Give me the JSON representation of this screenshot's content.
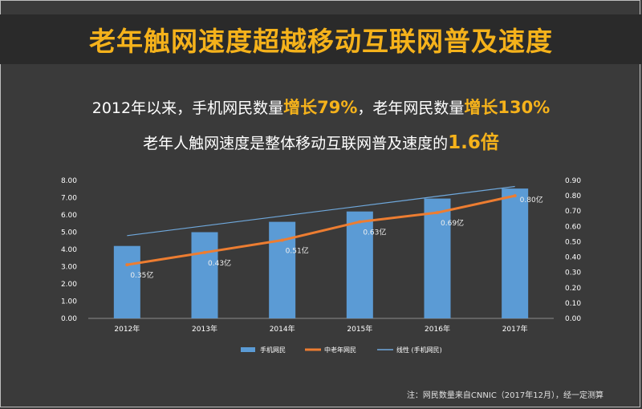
{
  "header": {
    "title": "老年触网速度超越移动互联网普及速度"
  },
  "subtitle": {
    "line1_a": "2012年以来，手机网民数量",
    "line1_hl1": "增长79%",
    "line1_b": "，老年网民数量",
    "line1_hl2": "增长130%",
    "line2_a": "老年人触网速度是整体移动互联网普及速度的",
    "line2_hl": "1.6倍"
  },
  "note": "注：网民数量来自CNNIC（2017年12月），经一定测算",
  "colors": {
    "bar": "#5b9bd5",
    "line_elder": "#ed7d31",
    "trend": "#6fa8dc",
    "axis_text": "#ffffff",
    "title": "#f5b21b"
  },
  "chart_data": {
    "type": "bar",
    "categories": [
      "2012年",
      "2013年",
      "2014年",
      "2015年",
      "2016年",
      "2017年"
    ],
    "series": [
      {
        "name": "手机网民",
        "type": "bar",
        "axis": "left",
        "values": [
          4.2,
          5.0,
          5.6,
          6.2,
          6.95,
          7.53
        ]
      },
      {
        "name": "中老年网民",
        "type": "line",
        "axis": "right",
        "values": [
          0.35,
          0.43,
          0.51,
          0.63,
          0.69,
          0.8
        ]
      },
      {
        "name": "线性 (手机网民)",
        "type": "line",
        "axis": "left",
        "values": [
          4.8,
          5.37,
          5.94,
          6.51,
          7.08,
          7.65
        ]
      }
    ],
    "data_labels": [
      "0.35亿",
      "0.43亿",
      "0.51亿",
      "0.63亿",
      "0.69亿",
      "0.80亿"
    ],
    "y_left_ticks": [
      "0.00",
      "1.00",
      "2.00",
      "3.00",
      "4.00",
      "5.00",
      "6.00",
      "7.00",
      "8.00"
    ],
    "y_right_ticks": [
      "0.00",
      "0.10",
      "0.20",
      "0.30",
      "0.40",
      "0.50",
      "0.60",
      "0.70",
      "0.80",
      "0.90"
    ],
    "ylim_left": [
      0,
      8
    ],
    "ylim_right": [
      0,
      0.9
    ],
    "legend": [
      "手机网民",
      "中老年网民",
      "线性 (手机网民)"
    ],
    "legend_position": "bottom",
    "grid": false
  }
}
